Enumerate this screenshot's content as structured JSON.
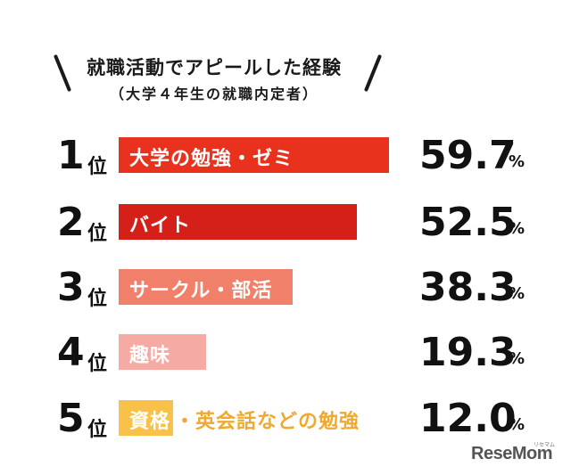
{
  "chart_data": {
    "type": "bar",
    "title": "就職活動でアピールした経験",
    "subtitle": "（大学４年生の就職内定者）",
    "rank_suffix": "位",
    "percent_sign": "%",
    "categories": [
      "大学の勉強・ゼミ",
      "バイト",
      "サークル・部活",
      "趣味",
      "資格・英会話などの勉強"
    ],
    "bar_labels": [
      "大学の勉強・ゼミ",
      "バイト",
      "サークル・部活",
      "趣味",
      "資格"
    ],
    "extra_labels": [
      "",
      "",
      "",
      "",
      "・英会話などの勉強"
    ],
    "ranks": [
      "1",
      "2",
      "3",
      "4",
      "5"
    ],
    "values": [
      59.7,
      52.5,
      38.3,
      19.3,
      12.0
    ],
    "value_labels": [
      "59.7",
      "52.5",
      "38.3",
      "19.3",
      "12.0"
    ],
    "colors": [
      "#e8321e",
      "#d5201a",
      "#f0806a",
      "#f5aaa4",
      "#f8c24a"
    ],
    "extra_color": "#f0a830",
    "ylim": [
      0,
      60
    ]
  },
  "logo": {
    "text": "ReseMom",
    "small": "リセマム"
  }
}
